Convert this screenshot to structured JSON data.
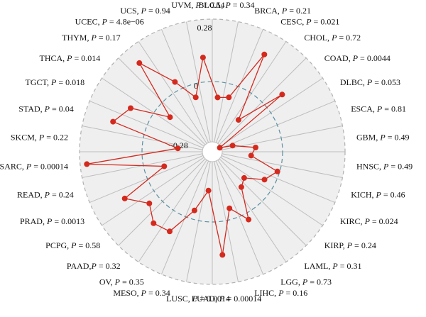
{
  "colors": {
    "background_disc": "#efefef",
    "spoke": "#bdbdbd",
    "outer_ring": "#b0b0b0",
    "zero_ring": "#5a8fa0",
    "series_line": "#d42a1e",
    "series_point": "#d42a1e"
  },
  "chart_data": {
    "type": "radar",
    "r_range": [
      -0.28,
      0.28
    ],
    "r_ticks": [
      {
        "value": 0.28,
        "label": "0.28"
      },
      {
        "value": 0.0,
        "label": "0"
      },
      {
        "value": -0.28,
        "label": "−0.28"
      }
    ],
    "grid": true,
    "categories": [
      {
        "name": "BLCA",
        "p": "0.34"
      },
      {
        "name": "BRCA",
        "p": "0.21"
      },
      {
        "name": "CESC",
        "p": "0.021"
      },
      {
        "name": "CHOL",
        "p": "0.72"
      },
      {
        "name": "COAD",
        "p": "0.0044"
      },
      {
        "name": "DLBC",
        "p": "0.053"
      },
      {
        "name": "ESCA",
        "p": "0.81"
      },
      {
        "name": "GBM",
        "p": "0.49"
      },
      {
        "name": "HNSC",
        "p": "0.49"
      },
      {
        "name": "KICH",
        "p": "0.46"
      },
      {
        "name": "KIRC",
        "p": "0.024"
      },
      {
        "name": "KIRP",
        "p": "0.24"
      },
      {
        "name": "LAML",
        "p": "0.31"
      },
      {
        "name": "LGG",
        "p": "0.73"
      },
      {
        "name": "LIHC",
        "p": "0.16"
      },
      {
        "name": "LUAD",
        "p": "0.00014"
      },
      {
        "name": "LUSC",
        "p": "0.0014"
      },
      {
        "name": "MESO",
        "p": "0.34"
      },
      {
        "name": "OV",
        "p": "0.35"
      },
      {
        "name": "PAAD",
        "p": "0.32",
        "sep": ","
      },
      {
        "name": "PCPG",
        "p": "0.58"
      },
      {
        "name": "PRAD",
        "p": "0.0013"
      },
      {
        "name": "READ",
        "p": "0.24"
      },
      {
        "name": "SARC",
        "p": "0.00014"
      },
      {
        "name": "SKCM",
        "p": "0.22"
      },
      {
        "name": "STAD",
        "p": "0.04"
      },
      {
        "name": "TGCT",
        "p": "0.018"
      },
      {
        "name": "THCA",
        "p": "0.014"
      },
      {
        "name": "THYM",
        "p": "0.17"
      },
      {
        "name": "UCEC",
        "p": "4.8e−06"
      },
      {
        "name": "UCS",
        "p": "0.94"
      },
      {
        "name": "UVM",
        "p": "0.54"
      }
    ],
    "values": [
      -0.07,
      -0.06,
      0.18,
      -0.13,
      0.09,
      -0.33,
      -0.22,
      -0.12,
      -0.14,
      -0.01,
      -0.05,
      -0.13,
      -0.11,
      0.03,
      -0.05,
      0.15,
      -0.14,
      -0.04,
      0.09,
      0.1,
      0.05,
      0.13,
      -0.09,
      0.25,
      -0.16,
      0.15,
      0.1,
      -0.07,
      0.2,
      0.04,
      -0.06,
      0.11
    ]
  }
}
